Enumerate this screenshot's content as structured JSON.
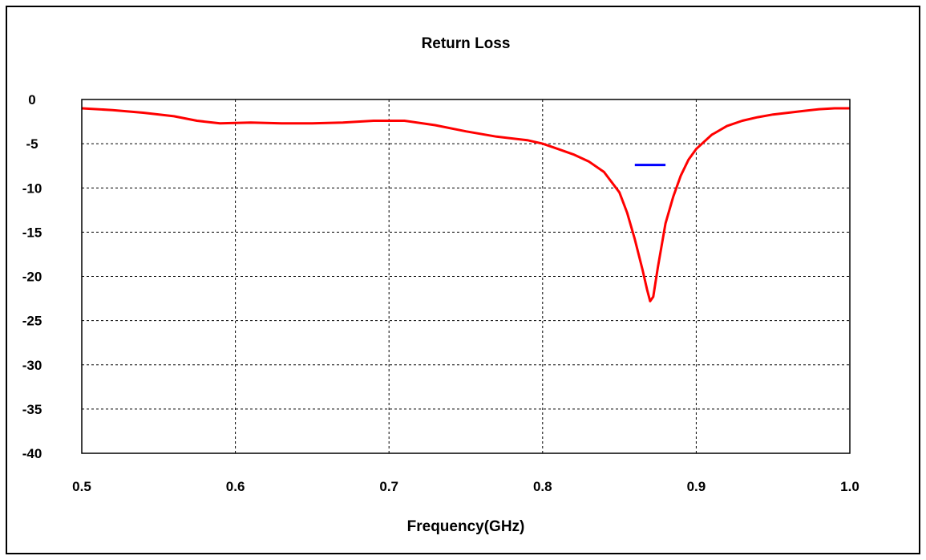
{
  "chart_data": {
    "type": "line",
    "title": "Return Loss",
    "xlabel": "Frequency(GHz)",
    "ylabel": "",
    "xlim": [
      0.5,
      1.0
    ],
    "ylim": [
      -40,
      0
    ],
    "x_ticks": [
      0.5,
      0.6,
      0.7,
      0.8,
      0.9,
      1.0
    ],
    "x_tick_labels": [
      "0.5",
      "0.6",
      "0.7",
      "0.8",
      "0.9",
      "1.0"
    ],
    "y_ticks": [
      0,
      -5,
      -10,
      -15,
      -20,
      -25,
      -30,
      -35,
      -40
    ],
    "y_tick_labels": [
      "0",
      "-5",
      "-10",
      "-15",
      "-20",
      "-25",
      "-30",
      "-35",
      "-40"
    ],
    "grid": true,
    "grid_style": "dashed",
    "series": [
      {
        "color": "#ff0000",
        "x": [
          0.5,
          0.52,
          0.54,
          0.56,
          0.575,
          0.59,
          0.61,
          0.63,
          0.65,
          0.67,
          0.69,
          0.71,
          0.73,
          0.75,
          0.77,
          0.79,
          0.8,
          0.81,
          0.82,
          0.83,
          0.84,
          0.85,
          0.855,
          0.86,
          0.865,
          0.868,
          0.87,
          0.872,
          0.875,
          0.88,
          0.885,
          0.89,
          0.895,
          0.9,
          0.91,
          0.92,
          0.93,
          0.94,
          0.95,
          0.96,
          0.97,
          0.98,
          0.99,
          1.0
        ],
        "y": [
          -1.0,
          -1.2,
          -1.5,
          -1.9,
          -2.4,
          -2.7,
          -2.6,
          -2.7,
          -2.7,
          -2.6,
          -2.4,
          -2.4,
          -2.9,
          -3.6,
          -4.2,
          -4.6,
          -5.0,
          -5.6,
          -6.2,
          -7.0,
          -8.2,
          -10.5,
          -12.8,
          -15.8,
          -19.2,
          -21.5,
          -22.8,
          -22.3,
          -19.0,
          -14.0,
          -11.0,
          -8.6,
          -6.8,
          -5.6,
          -4.0,
          -3.0,
          -2.4,
          -2.0,
          -1.7,
          -1.5,
          -1.3,
          -1.1,
          -1.0,
          -1.0
        ]
      },
      {
        "color": "#0000ff",
        "x": [
          0.86,
          0.88
        ],
        "y": [
          -7.4,
          -7.4
        ]
      }
    ]
  }
}
